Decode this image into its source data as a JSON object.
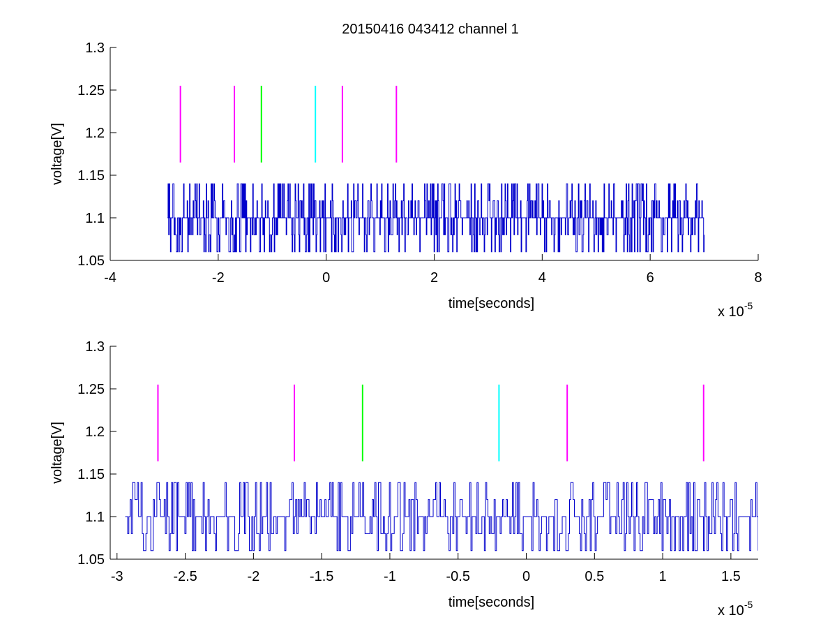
{
  "figure": {
    "title": "20150416 043412 channel 1"
  },
  "chart_data": [
    {
      "type": "line",
      "title": "20150416 043412 channel 1",
      "xlabel": "time[seconds]",
      "ylabel": "voltage[V]",
      "x_exponent": "x 10",
      "x_exponent_power": "-5",
      "xlim": [
        -4,
        8
      ],
      "ylim": [
        1.05,
        1.3
      ],
      "x_scale": 1e-05,
      "xticks": [
        -4,
        -2,
        0,
        2,
        4,
        6,
        8
      ],
      "xtick_labels": [
        "-4",
        "-2",
        "0",
        "2",
        "4",
        "6",
        "8"
      ],
      "yticks": [
        1.05,
        1.1,
        1.15,
        1.2,
        1.25,
        1.3
      ],
      "ytick_labels": [
        "1.05",
        "1.1",
        "1.15",
        "1.2",
        "1.25",
        "1.3"
      ],
      "grid": false,
      "signal": {
        "color": "#0000cc",
        "x_start": -2.94,
        "x_end": 7.0,
        "baseline": 1.1,
        "levels": [
          1.06,
          1.08,
          1.1,
          1.12,
          1.14
        ]
      },
      "markers": [
        {
          "x": -2.7,
          "y0": 1.165,
          "y1": 1.255,
          "color": "#ff00ff"
        },
        {
          "x": -1.7,
          "y0": 1.165,
          "y1": 1.255,
          "color": "#ff00ff"
        },
        {
          "x": -1.2,
          "y0": 1.165,
          "y1": 1.255,
          "color": "#00ff00"
        },
        {
          "x": -0.2,
          "y0": 1.165,
          "y1": 1.255,
          "color": "#00ffff"
        },
        {
          "x": 0.3,
          "y0": 1.165,
          "y1": 1.255,
          "color": "#ff00ff"
        },
        {
          "x": 1.3,
          "y0": 1.165,
          "y1": 1.255,
          "color": "#ff00ff"
        }
      ]
    },
    {
      "type": "line",
      "title": "",
      "xlabel": "time[seconds]",
      "ylabel": "voltage[V]",
      "x_exponent": "x 10",
      "x_exponent_power": "-5",
      "xlim": [
        -3.05,
        1.7
      ],
      "ylim": [
        1.05,
        1.3
      ],
      "x_scale": 1e-05,
      "xticks": [
        -3,
        -2.5,
        -2,
        -1.5,
        -1,
        -0.5,
        0,
        0.5,
        1,
        1.5
      ],
      "xtick_labels": [
        "-3",
        "-2.5",
        "-2",
        "-1.5",
        "-1",
        "-0.5",
        "0",
        "0.5",
        "1",
        "1.5"
      ],
      "yticks": [
        1.05,
        1.1,
        1.15,
        1.2,
        1.25,
        1.3
      ],
      "ytick_labels": [
        "1.05",
        "1.1",
        "1.15",
        "1.2",
        "1.25",
        "1.3"
      ],
      "grid": false,
      "signal": {
        "color": "#0000cc",
        "x_start": -2.94,
        "x_end": 1.7,
        "baseline": 1.1,
        "levels": [
          1.06,
          1.08,
          1.1,
          1.12,
          1.14
        ]
      },
      "markers": [
        {
          "x": -2.7,
          "y0": 1.165,
          "y1": 1.255,
          "color": "#ff00ff"
        },
        {
          "x": -1.7,
          "y0": 1.165,
          "y1": 1.255,
          "color": "#ff00ff"
        },
        {
          "x": -1.2,
          "y0": 1.165,
          "y1": 1.255,
          "color": "#00ff00"
        },
        {
          "x": -0.2,
          "y0": 1.165,
          "y1": 1.255,
          "color": "#00ffff"
        },
        {
          "x": 0.3,
          "y0": 1.165,
          "y1": 1.255,
          "color": "#ff00ff"
        },
        {
          "x": 1.3,
          "y0": 1.165,
          "y1": 1.255,
          "color": "#ff00ff"
        }
      ]
    }
  ]
}
